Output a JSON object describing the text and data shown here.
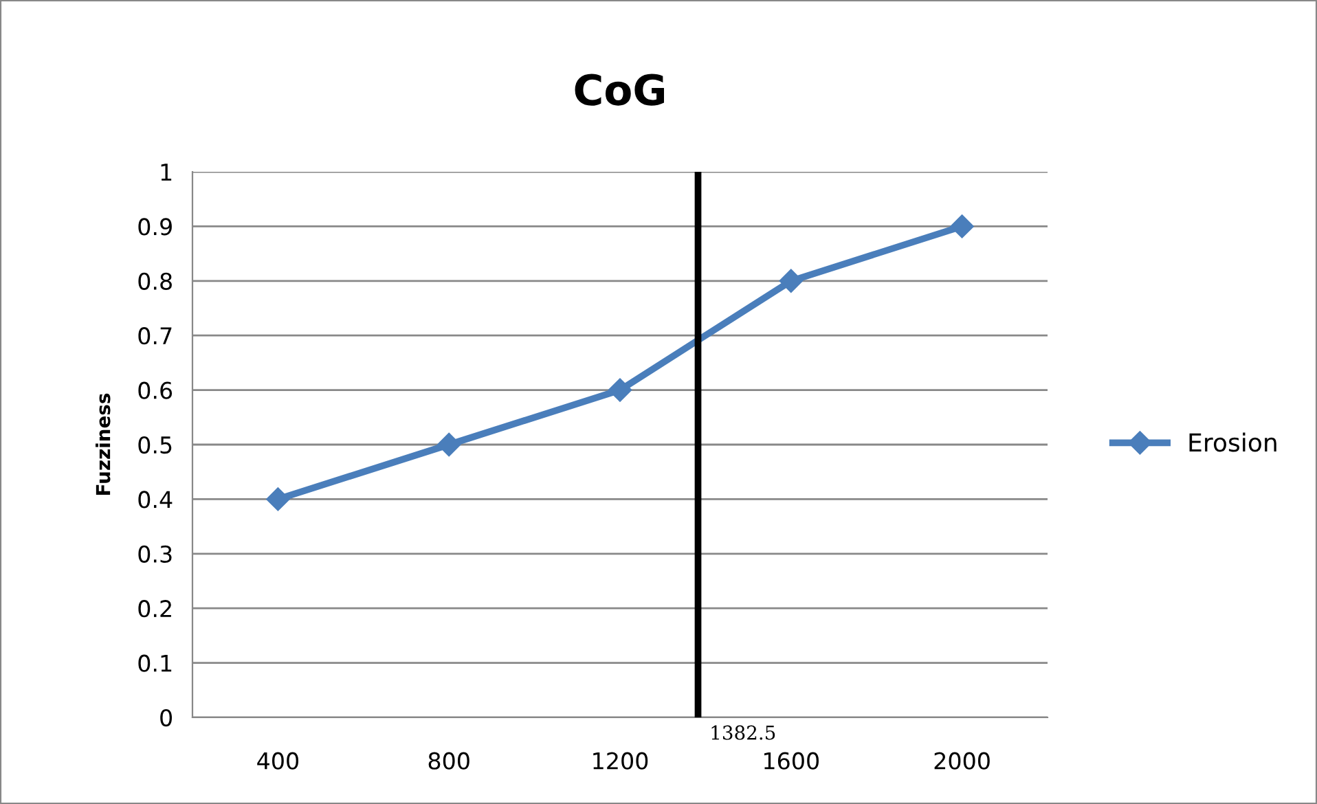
{
  "chart_data": {
    "type": "line",
    "title": "CoG",
    "ylabel": "Fuzziness",
    "x": [
      400,
      800,
      1200,
      1600,
      2000
    ],
    "series": [
      {
        "name": "Erosion",
        "color": "#4a7ebb",
        "values": [
          0.4,
          0.5,
          0.6,
          0.8,
          0.9
        ]
      }
    ],
    "xlim": [
      200,
      2200
    ],
    "xticks": [
      400,
      800,
      1200,
      1600,
      2000
    ],
    "ylim": [
      0,
      1
    ],
    "yticks": [
      0,
      0.1,
      0.2,
      0.3,
      0.4,
      0.5,
      0.6,
      0.7,
      0.8,
      0.9,
      1
    ],
    "ref_lines": [
      {
        "axis": "x",
        "value": 1382.5,
        "label": "1382.5",
        "color": "#000000"
      }
    ],
    "grid": "y",
    "legend": "right",
    "marker": "diamond",
    "line_style": "solid"
  }
}
